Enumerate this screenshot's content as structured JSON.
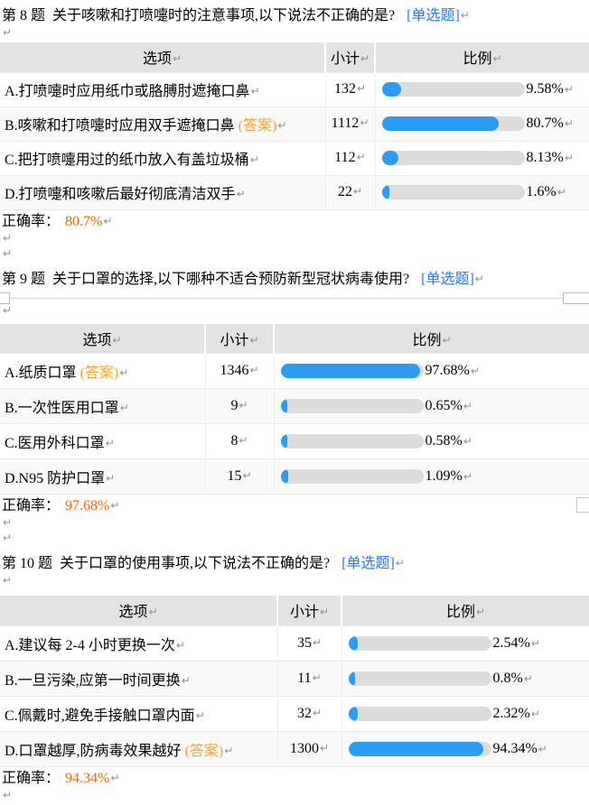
{
  "colors": {
    "text": "#000000",
    "tag-blue": "#2b78f0",
    "bar-fill": "#2d9cf0",
    "bar-track": "#dcdcdc",
    "answer-orange": "#f7a52b",
    "accuracy-orange": "#ff6600",
    "header-bg": "#e3e3e3",
    "border": "#eaeaea",
    "pilcrow-gray": "#8f8f8f"
  },
  "glyphs": {
    "pilcrow": "↵"
  },
  "columns": {
    "option": "选项",
    "count": "小计",
    "ratio": "比例"
  },
  "questions": [
    {
      "title": "第 8 题  关于咳嗽和打喷嚏时的注意事项,以下说法不正确的是?",
      "tag": "[单选题]",
      "rows": [
        {
          "option": "A.打喷嚏时应用纸巾或胳膊肘遮掩口鼻",
          "count": "132",
          "pct": 9.58,
          "pct_label": "9.58%"
        },
        {
          "option": "B.咳嗽和打喷嚏时应用双手遮掩口鼻",
          "answer": "(答案)",
          "count": "1112",
          "pct": 80.7,
          "pct_label": "80.7%"
        },
        {
          "option": "C.把打喷嚏用过的纸巾放入有盖垃圾桶",
          "count": "112",
          "pct": 8.13,
          "pct_label": "8.13%"
        },
        {
          "option": "D.打喷嚏和咳嗽后最好彻底清洁双手",
          "count": "22",
          "pct": 1.6,
          "pct_label": "1.6%"
        }
      ],
      "accuracy_label": "正确率：",
      "accuracy": "80.7%"
    },
    {
      "title": "第 9 题  关于口罩的选择,以下哪种不适合预防新型冠状病毒使用?",
      "tag": "[单选题]",
      "rows": [
        {
          "option": "A.纸质口罩",
          "answer": "(答案)",
          "count": "1346",
          "pct": 97.68,
          "pct_label": "97.68%"
        },
        {
          "option": "B.一次性医用口罩",
          "count": "9",
          "pct": 0.65,
          "pct_label": "0.65%"
        },
        {
          "option": "C.医用外科口罩",
          "count": "8",
          "pct": 0.58,
          "pct_label": "0.58%"
        },
        {
          "option": "D.N95 防护口罩",
          "count": "15",
          "pct": 1.09,
          "pct_label": "1.09%"
        }
      ],
      "accuracy_label": "正确率：",
      "accuracy": "97.68%"
    },
    {
      "title": "第 10 题  关于口罩的使用事项,以下说法不正确的是?",
      "tag": "[单选题]",
      "rows": [
        {
          "option": "A.建议每 2-4 小时更换一次",
          "count": "35",
          "pct": 2.54,
          "pct_label": "2.54%"
        },
        {
          "option": "B.一旦污染,应第一时间更换",
          "count": "11",
          "pct": 0.8,
          "pct_label": "0.8%"
        },
        {
          "option": "C.佩戴时,避免手接触口罩内面",
          "count": "32",
          "pct": 2.32,
          "pct_label": "2.32%"
        },
        {
          "option": "D.口罩越厚,防病毒效果越好",
          "answer": "(答案)",
          "count": "1300",
          "pct": 94.34,
          "pct_label": "94.34%"
        }
      ],
      "accuracy_label": "正确率：",
      "accuracy": "94.34%"
    }
  ]
}
